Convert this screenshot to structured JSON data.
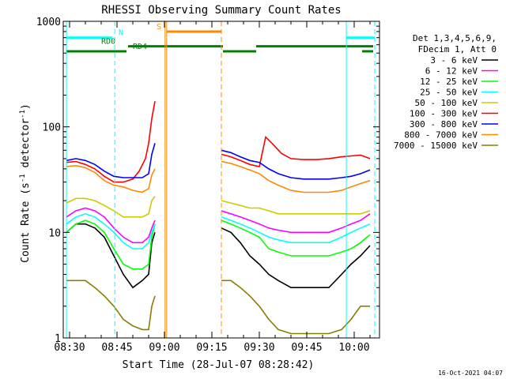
{
  "chart_data": {
    "type": "line",
    "title": "RHESSI Observing Summary Count Rates",
    "xlabel": "Start Time (28-Jul-07 08:28:42)",
    "ylabel_prefix": "Count Rate (s",
    "ylabel_sup": "-1",
    "ylabel_mid": " detector",
    "ylabel_suffix": ")",
    "footer_date": "16-Oct-2021 04:07",
    "x_range_min": [
      -2.0,
      98.0
    ],
    "y_log": true,
    "ylim": [
      1,
      1000
    ],
    "x_ticks": [
      {
        "t": 0,
        "label": "08:30"
      },
      {
        "t": 15,
        "label": "08:45"
      },
      {
        "t": 30,
        "label": "09:00"
      },
      {
        "t": 45,
        "label": "09:15"
      },
      {
        "t": 60,
        "label": "09:30"
      },
      {
        "t": 75,
        "label": "09:45"
      },
      {
        "t": 90,
        "label": "10:00"
      }
    ],
    "y_ticks": [
      {
        "v": 1,
        "label": "1"
      },
      {
        "v": 10,
        "label": "10"
      },
      {
        "v": 100,
        "label": "100"
      },
      {
        "v": 1000,
        "label": "1000"
      }
    ],
    "legend": {
      "header1": "Det 1,3,4,5,6,9,",
      "header2": "FDecim 1, Att 0",
      "entries": [
        {
          "label": "3 - 6 keV",
          "color": "#000000"
        },
        {
          "label": "6 - 12 keV",
          "color": "#ff00ff"
        },
        {
          "label": "12 - 25 keV",
          "color": "#00ff00"
        },
        {
          "label": "25 - 50 keV",
          "color": "#00ffff"
        },
        {
          "label": "50 - 100 keV",
          "color": "#cccc00"
        },
        {
          "label": "100 - 300 keV",
          "color": "#ff0000"
        },
        {
          "label": "300 - 800 keV",
          "color": "#0000ff"
        },
        {
          "label": "800 - 7000 keV",
          "color": "#ff8800"
        },
        {
          "label": "7000 - 15000 keV",
          "color": "#8b7d00"
        }
      ]
    },
    "series": [
      {
        "name": "3 - 6 keV",
        "color": "#000000",
        "seg1": [
          [
            -1,
            10
          ],
          [
            2,
            12
          ],
          [
            5,
            12
          ],
          [
            8,
            11
          ],
          [
            11,
            9
          ],
          [
            14,
            6
          ],
          [
            17,
            4
          ],
          [
            20,
            3
          ],
          [
            23,
            3.5
          ],
          [
            25,
            4
          ],
          [
            26,
            8
          ],
          [
            27,
            10
          ]
        ],
        "seg2": [
          [
            48,
            11
          ],
          [
            51,
            10
          ],
          [
            54,
            8
          ],
          [
            57,
            6
          ],
          [
            60,
            5
          ],
          [
            63,
            4
          ],
          [
            66,
            3.5
          ],
          [
            70,
            3
          ],
          [
            74,
            3
          ],
          [
            78,
            3
          ],
          [
            82,
            3
          ],
          [
            86,
            4
          ],
          [
            89,
            5
          ],
          [
            92,
            6
          ],
          [
            95,
            7.5
          ]
        ]
      },
      {
        "name": "6 - 12 keV",
        "color": "#ff00ff",
        "seg1": [
          [
            -1,
            14
          ],
          [
            2,
            16
          ],
          [
            5,
            17
          ],
          [
            8,
            16
          ],
          [
            11,
            14
          ],
          [
            14,
            11
          ],
          [
            17,
            9
          ],
          [
            20,
            8
          ],
          [
            23,
            8
          ],
          [
            25,
            9
          ],
          [
            26,
            11
          ],
          [
            27,
            13
          ]
        ],
        "seg2": [
          [
            48,
            16
          ],
          [
            51,
            15
          ],
          [
            54,
            14
          ],
          [
            57,
            13
          ],
          [
            60,
            12
          ],
          [
            63,
            11
          ],
          [
            66,
            10.5
          ],
          [
            70,
            10
          ],
          [
            74,
            10
          ],
          [
            78,
            10
          ],
          [
            82,
            10
          ],
          [
            86,
            11
          ],
          [
            89,
            12
          ],
          [
            92,
            13
          ],
          [
            95,
            15
          ]
        ]
      },
      {
        "name": "12 - 25 keV",
        "color": "#00ff00",
        "seg1": [
          [
            -1,
            10
          ],
          [
            2,
            12
          ],
          [
            5,
            13
          ],
          [
            8,
            12
          ],
          [
            11,
            10
          ],
          [
            14,
            7
          ],
          [
            17,
            5
          ],
          [
            20,
            4.5
          ],
          [
            23,
            4.5
          ],
          [
            25,
            5
          ],
          [
            26,
            9
          ],
          [
            27,
            12
          ]
        ],
        "seg2": [
          [
            48,
            13
          ],
          [
            51,
            12
          ],
          [
            54,
            11
          ],
          [
            57,
            10
          ],
          [
            60,
            9
          ],
          [
            63,
            7
          ],
          [
            66,
            6.5
          ],
          [
            70,
            6
          ],
          [
            74,
            6
          ],
          [
            78,
            6
          ],
          [
            82,
            6
          ],
          [
            86,
            6.5
          ],
          [
            89,
            7
          ],
          [
            92,
            8
          ],
          [
            95,
            9.5
          ]
        ]
      },
      {
        "name": "25 - 50 keV",
        "color": "#00ffff",
        "seg1": [
          [
            -1,
            12
          ],
          [
            2,
            14
          ],
          [
            5,
            15
          ],
          [
            8,
            14
          ],
          [
            11,
            12
          ],
          [
            14,
            10
          ],
          [
            17,
            8
          ],
          [
            20,
            7
          ],
          [
            23,
            7
          ],
          [
            25,
            8
          ],
          [
            26,
            10
          ],
          [
            27,
            12
          ]
        ],
        "seg2": [
          [
            48,
            14
          ],
          [
            51,
            13
          ],
          [
            54,
            12
          ],
          [
            57,
            11
          ],
          [
            60,
            10
          ],
          [
            63,
            9
          ],
          [
            66,
            8.5
          ],
          [
            70,
            8
          ],
          [
            74,
            8
          ],
          [
            78,
            8
          ],
          [
            82,
            8
          ],
          [
            86,
            9
          ],
          [
            89,
            10
          ],
          [
            92,
            11
          ],
          [
            95,
            12
          ]
        ]
      },
      {
        "name": "50 - 100 keV",
        "color": "#cccc00",
        "seg1": [
          [
            -1,
            19
          ],
          [
            2,
            21
          ],
          [
            5,
            21
          ],
          [
            8,
            20
          ],
          [
            11,
            18
          ],
          [
            14,
            16
          ],
          [
            17,
            14
          ],
          [
            20,
            14
          ],
          [
            23,
            14
          ],
          [
            25,
            15
          ],
          [
            26,
            20
          ],
          [
            27,
            22
          ]
        ],
        "seg2": [
          [
            48,
            20
          ],
          [
            51,
            19
          ],
          [
            54,
            18
          ],
          [
            57,
            17
          ],
          [
            60,
            17
          ],
          [
            63,
            16
          ],
          [
            66,
            15
          ],
          [
            70,
            15
          ],
          [
            74,
            15
          ],
          [
            78,
            15
          ],
          [
            82,
            15
          ],
          [
            86,
            15
          ],
          [
            89,
            15
          ],
          [
            92,
            15
          ],
          [
            95,
            16
          ]
        ]
      },
      {
        "name": "100 - 300 keV",
        "color": "#ff0000",
        "seg1": [
          [
            -1,
            46
          ],
          [
            2,
            47
          ],
          [
            5,
            44
          ],
          [
            8,
            40
          ],
          [
            11,
            34
          ],
          [
            14,
            30
          ],
          [
            17,
            30
          ],
          [
            20,
            32
          ],
          [
            22,
            38
          ],
          [
            24,
            50
          ],
          [
            25,
            70
          ],
          [
            26,
            120
          ],
          [
            27,
            175
          ]
        ],
        "seg2": [
          [
            48,
            55
          ],
          [
            51,
            52
          ],
          [
            54,
            48
          ],
          [
            57,
            44
          ],
          [
            60,
            42
          ],
          [
            62,
            80
          ],
          [
            64,
            70
          ],
          [
            67,
            56
          ],
          [
            70,
            50
          ],
          [
            74,
            49
          ],
          [
            78,
            49
          ],
          [
            82,
            50
          ],
          [
            86,
            52
          ],
          [
            89,
            53
          ],
          [
            92,
            54
          ],
          [
            95,
            50
          ]
        ]
      },
      {
        "name": "300 - 800 keV",
        "color": "#0000ff",
        "seg1": [
          [
            -1,
            48
          ],
          [
            2,
            50
          ],
          [
            5,
            48
          ],
          [
            8,
            44
          ],
          [
            11,
            38
          ],
          [
            14,
            34
          ],
          [
            17,
            33
          ],
          [
            20,
            33
          ],
          [
            23,
            33
          ],
          [
            25,
            36
          ],
          [
            26,
            55
          ],
          [
            27,
            70
          ]
        ],
        "seg2": [
          [
            48,
            60
          ],
          [
            51,
            57
          ],
          [
            54,
            52
          ],
          [
            57,
            48
          ],
          [
            60,
            46
          ],
          [
            63,
            40
          ],
          [
            66,
            36
          ],
          [
            70,
            33
          ],
          [
            74,
            32
          ],
          [
            78,
            32
          ],
          [
            82,
            32
          ],
          [
            86,
            33
          ],
          [
            89,
            34
          ],
          [
            92,
            36
          ],
          [
            95,
            39
          ]
        ]
      },
      {
        "name": "800 - 7000 keV",
        "color": "#ff8800",
        "seg1": [
          [
            -1,
            42
          ],
          [
            2,
            43
          ],
          [
            5,
            41
          ],
          [
            8,
            37
          ],
          [
            11,
            31
          ],
          [
            14,
            28
          ],
          [
            17,
            27
          ],
          [
            20,
            25
          ],
          [
            23,
            24
          ],
          [
            25,
            26
          ],
          [
            26,
            35
          ],
          [
            27,
            40
          ]
        ],
        "seg2": [
          [
            48,
            47
          ],
          [
            51,
            45
          ],
          [
            54,
            42
          ],
          [
            57,
            39
          ],
          [
            60,
            36
          ],
          [
            63,
            31
          ],
          [
            66,
            28
          ],
          [
            70,
            25
          ],
          [
            74,
            24
          ],
          [
            78,
            24
          ],
          [
            82,
            24
          ],
          [
            86,
            25
          ],
          [
            89,
            27
          ],
          [
            92,
            29
          ],
          [
            95,
            31
          ]
        ]
      },
      {
        "name": "7000 - 15000 keV",
        "color": "#8b7d00",
        "seg1": [
          [
            -1,
            3.5
          ],
          [
            2,
            3.5
          ],
          [
            5,
            3.5
          ],
          [
            8,
            3
          ],
          [
            11,
            2.5
          ],
          [
            14,
            2
          ],
          [
            17,
            1.5
          ],
          [
            20,
            1.3
          ],
          [
            23,
            1.2
          ],
          [
            25,
            1.2
          ],
          [
            26,
            2
          ],
          [
            27,
            2.5
          ]
        ],
        "seg2": [
          [
            48,
            3.5
          ],
          [
            51,
            3.5
          ],
          [
            54,
            3
          ],
          [
            57,
            2.5
          ],
          [
            60,
            2
          ],
          [
            63,
            1.5
          ],
          [
            66,
            1.2
          ],
          [
            70,
            1.1
          ],
          [
            74,
            1.1
          ],
          [
            78,
            1.1
          ],
          [
            82,
            1.1
          ],
          [
            86,
            1.2
          ],
          [
            89,
            1.5
          ],
          [
            92,
            2
          ],
          [
            95,
            2
          ]
        ]
      }
    ],
    "vlines": [
      {
        "t": -1.0,
        "color": "#00ffff",
        "dash": false
      },
      {
        "t": 14.3,
        "color": "#00ffff",
        "dash": true
      },
      {
        "t": 30.2,
        "color": "#ff8800",
        "dash": false
      },
      {
        "t": 30.7,
        "color": "#ff8800",
        "dash": false
      },
      {
        "t": 48.0,
        "color": "#ff8800",
        "dash": true
      },
      {
        "t": 87.5,
        "color": "#00ffff",
        "dash": false
      },
      {
        "t": 96.5,
        "color": "#00ffff",
        "dash": true
      }
    ],
    "flags": [
      {
        "label": "N",
        "color": "#00ffff",
        "y": 700,
        "segments": [
          [
            -1,
            13.5
          ],
          [
            87.5,
            96.5
          ]
        ],
        "label_t": 15.5
      },
      {
        "label": "S",
        "color": "#ff8800",
        "y": 800,
        "segments": [
          [
            30.7,
            48.0
          ]
        ],
        "label_t": 27.5
      },
      {
        "label": "RD0",
        "color": "#008000",
        "y": 580,
        "segments": [
          [
            18.5,
            48.5
          ],
          [
            59.0,
            96.0
          ]
        ],
        "label_t": 10.0
      },
      {
        "label": "RD4",
        "color": "#008000",
        "y": 520,
        "segments": [
          [
            -1,
            18.0
          ],
          [
            48.5,
            59.0
          ],
          [
            92.5,
            96.0
          ]
        ],
        "label_t": 20.0
      }
    ]
  }
}
